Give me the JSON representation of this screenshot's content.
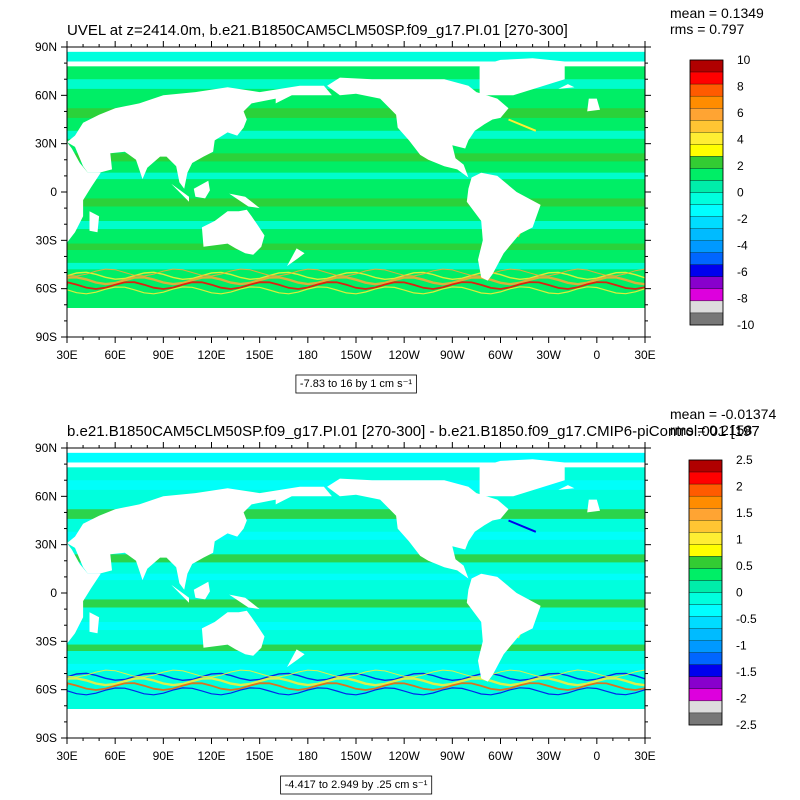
{
  "chart_data": [
    {
      "type": "heatmap",
      "title": "UVEL at z=2414.0m, b.e21.B1850CAM5CLM50SP.f09_g17.PI.01 [270-300]",
      "stats": {
        "mean": "mean = 0.1349",
        "rms": "rms = 0.797"
      },
      "xticks": [
        "30E",
        "60E",
        "90E",
        "120E",
        "150E",
        "180",
        "150W",
        "120W",
        "90W",
        "60W",
        "30W",
        "0",
        "30E"
      ],
      "yticks": [
        "90N",
        "60N",
        "30N",
        "0",
        "30S",
        "60S",
        "90S"
      ],
      "range_label": "-7.83 to 16 by 1 cm s⁻¹",
      "colorbar": {
        "levels": [
          "10",
          "8",
          "6",
          "4",
          "2",
          "0",
          "-2",
          "-4",
          "-6",
          "-8",
          "-10"
        ],
        "colors": [
          "#b00000",
          "#ff0000",
          "#ff5a00",
          "#ff8c00",
          "#ffa433",
          "#ffc533",
          "#ffee33",
          "#ffff00",
          "#33cc33",
          "#00ee66",
          "#00eeaa",
          "#00ffdd",
          "#00ffff",
          "#00ddff",
          "#00bbff",
          "#0099ff",
          "#0066ff",
          "#0000ee",
          "#8800cc",
          "#dd00dd",
          "#dddddd",
          "#777777"
        ]
      },
      "field": {
        "ocean": "#00ee66",
        "band_primary": "#00ffdd",
        "band_secondary": "#33cc33",
        "acc_jet": [
          "#ffee33",
          "#ffa433",
          "#ff0000"
        ]
      }
    },
    {
      "type": "heatmap",
      "title": "b.e21.B1850CAM5CLM50SP.f09_g17.PI.01 [270-300] - b.e21.B1850.f09_g17.CMIP6-piControl.001 [197",
      "stats": {
        "mean": "mean = -0.01374",
        "rms": "rms = 0.2158"
      },
      "xticks": [
        "30E",
        "60E",
        "90E",
        "120E",
        "150E",
        "180",
        "150W",
        "120W",
        "90W",
        "60W",
        "30W",
        "0",
        "30E"
      ],
      "yticks": [
        "90N",
        "60N",
        "30N",
        "0",
        "30S",
        "60S",
        "90S"
      ],
      "range_label": "-4.417 to 2.949 by .25 cm s⁻¹",
      "colorbar": {
        "levels": [
          "2.5",
          "2",
          "1.5",
          "1",
          "0.5",
          "0",
          "-0.5",
          "-1",
          "-1.5",
          "-2",
          "-2.5"
        ],
        "colors": [
          "#b00000",
          "#ff0000",
          "#ff5a00",
          "#ff8c00",
          "#ffa433",
          "#ffc533",
          "#ffee33",
          "#ffff00",
          "#33cc33",
          "#00ee66",
          "#00eeaa",
          "#00ffdd",
          "#00ffff",
          "#00ddff",
          "#00bbff",
          "#0099ff",
          "#0066ff",
          "#0000ee",
          "#8800cc",
          "#dd00dd",
          "#dddddd",
          "#777777"
        ]
      },
      "field": {
        "ocean": "#00ffdd",
        "band_primary": "#00ffff",
        "band_secondary": "#33cc33",
        "acc_jet": [
          "#0000ee",
          "#ffee33",
          "#ff5a00"
        ]
      }
    }
  ]
}
